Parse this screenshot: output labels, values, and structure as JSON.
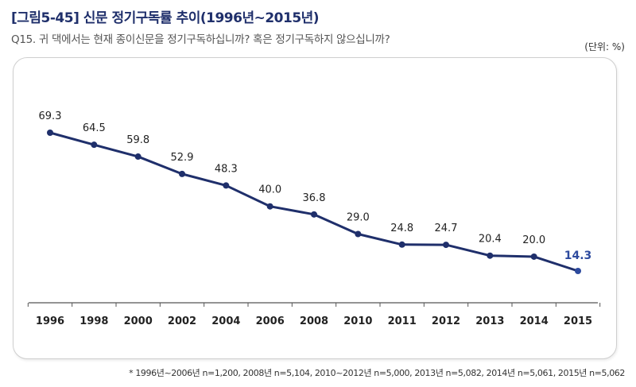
{
  "header": {
    "title": "[그림5-45] 신문 정기구독률 추이(1996년~2015년)",
    "question": "Q15. 귀 댁에서는 현재 종이신문을 정기구독하십니까? 혹은 정기구독하지 않으십니까?",
    "unit": "(단위: %)"
  },
  "footnote": "* 1996년~2006년 n=1,200, 2008년 n=5,104, 2010~2012년 n=5,000, 2013년 n=5,082, 2014년 n=5,061, 2015년 n=5,062",
  "colors": {
    "line": "#1f2f6b",
    "highlight": "#2d4a9e",
    "axis": "#555555"
  },
  "chart_data": {
    "type": "line",
    "title": "신문 정기구독률 추이(1996년~2015년)",
    "xlabel": "",
    "ylabel": "",
    "categories": [
      "1996",
      "1998",
      "2000",
      "2002",
      "2004",
      "2006",
      "2008",
      "2010",
      "2011",
      "2012",
      "2013",
      "2014",
      "2015"
    ],
    "series": [
      {
        "name": "정기구독률",
        "values": [
          69.3,
          64.5,
          59.8,
          52.9,
          48.3,
          40.0,
          36.8,
          29.0,
          24.8,
          24.7,
          20.4,
          20.0,
          14.3
        ],
        "labels": [
          "69.3",
          "64.5",
          "59.8",
          "52.9",
          "48.3",
          "40.0",
          "36.8",
          "29.0",
          "24.8",
          "24.7",
          "20.4",
          "20.0",
          "14.3"
        ]
      }
    ],
    "highlight_last": true,
    "grid": false
  }
}
